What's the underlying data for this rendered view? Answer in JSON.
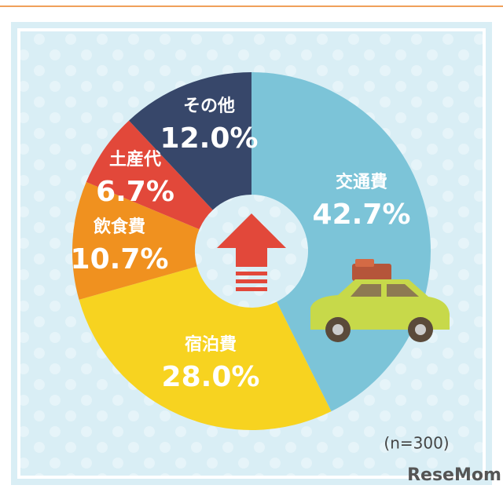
{
  "chart_data": {
    "type": "pie",
    "categories": [
      "交通費",
      "宿泊費",
      "飲食費",
      "土産代",
      "その他"
    ],
    "values": [
      42.7,
      28.0,
      10.7,
      6.7,
      12.0
    ],
    "value_labels": [
      "42.7%",
      "28.0%",
      "10.7%",
      "6.7%",
      "12.0%"
    ],
    "colors": [
      "#7cc4d8",
      "#f7d320",
      "#f0911f",
      "#e2483a",
      "#37476a"
    ],
    "donut": true,
    "note": "(n=300)",
    "watermark": "ReseMom"
  }
}
